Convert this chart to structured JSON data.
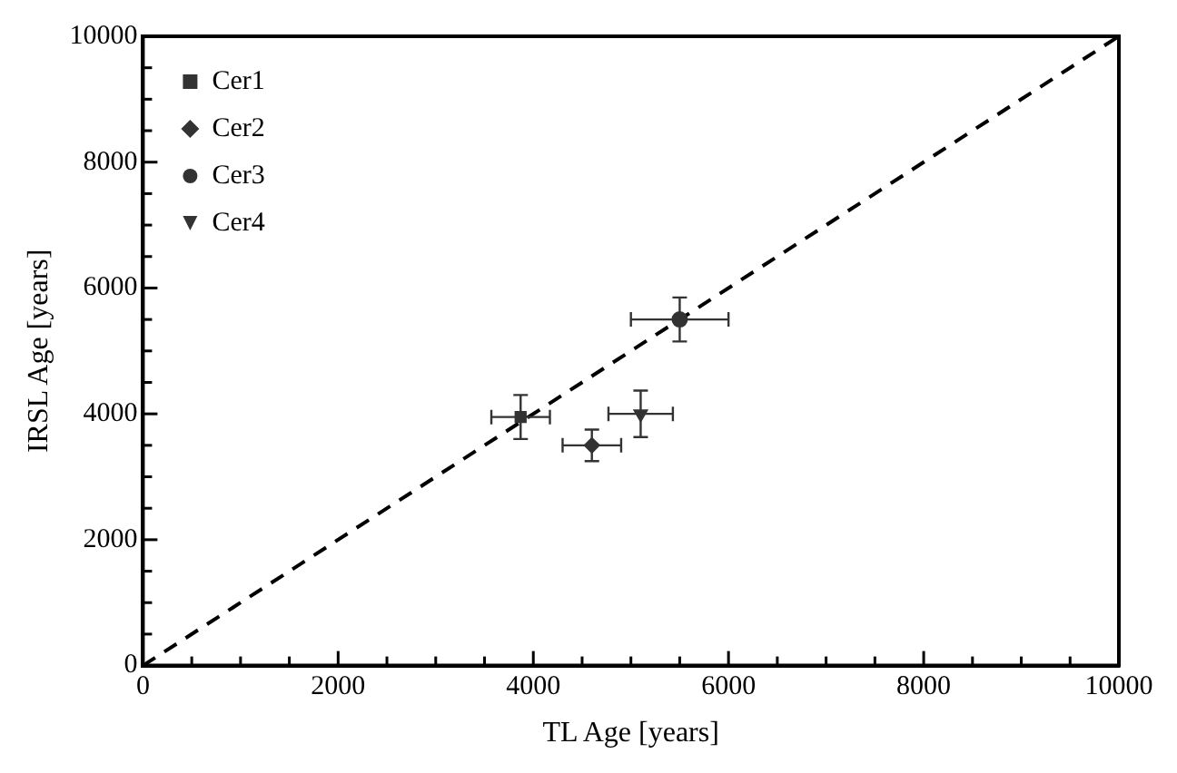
{
  "chart_data": {
    "type": "scatter",
    "xlabel": "TL Age [years]",
    "ylabel": "IRSL Age [years]",
    "xlim": [
      0,
      10000
    ],
    "ylim": [
      0,
      10000
    ],
    "xticks": [
      0,
      {
        "value": 500,
        "label": null
      },
      {
        "value": 1000,
        "label": null
      },
      {
        "value": 1500,
        "label": null
      },
      2000,
      {
        "value": 2500,
        "label": null
      },
      {
        "value": 3000,
        "label": null
      },
      {
        "value": 3500,
        "label": null
      },
      4000,
      {
        "value": 4500,
        "label": null
      },
      {
        "value": 5000,
        "label": null
      },
      {
        "value": 5500,
        "label": null
      },
      6000,
      {
        "value": 6500,
        "label": null
      },
      {
        "value": 7000,
        "label": null
      },
      {
        "value": 7500,
        "label": null
      },
      8000,
      {
        "value": 8500,
        "label": null
      },
      {
        "value": 9000,
        "label": null
      },
      {
        "value": 9500,
        "label": null
      },
      10000
    ],
    "yticks": [
      0,
      {
        "value": 500,
        "label": null
      },
      {
        "value": 1000,
        "label": null
      },
      {
        "value": 1500,
        "label": null
      },
      2000,
      {
        "value": 2500,
        "label": null
      },
      {
        "value": 3000,
        "label": null
      },
      {
        "value": 3500,
        "label": null
      },
      4000,
      {
        "value": 4500,
        "label": null
      },
      {
        "value": 5000,
        "label": null
      },
      {
        "value": 5500,
        "label": null
      },
      6000,
      {
        "value": 6500,
        "label": null
      },
      {
        "value": 7000,
        "label": null
      },
      {
        "value": 7500,
        "label": null
      },
      8000,
      {
        "value": 8500,
        "label": null
      },
      {
        "value": 9000,
        "label": null
      },
      {
        "value": 9500,
        "label": null
      },
      10000
    ],
    "grid": false,
    "legend": "top left",
    "series": [
      {
        "name": "Cer1",
        "color": "#333333",
        "marker": "square",
        "x": [
          3870
        ],
        "values": [
          3950
        ],
        "errors": [
          350
        ],
        "xerrors": [
          300
        ]
      },
      {
        "name": "Cer2",
        "color": "#333333",
        "marker": "diamond",
        "x": [
          4600
        ],
        "values": [
          3500
        ],
        "errors": [
          250
        ],
        "xerrors": [
          300
        ]
      },
      {
        "name": "Cer3",
        "color": "#333333",
        "marker": "circle",
        "x": [
          5500
        ],
        "values": [
          5500
        ],
        "errors": [
          350
        ],
        "xerrors": [
          500
        ]
      },
      {
        "name": "Cer4",
        "color": "#333333",
        "marker": "triangle",
        "x": [
          5100
        ],
        "values": [
          4000
        ],
        "errors": [
          370
        ],
        "xerrors": [
          330
        ]
      },
      {
        "type": "line",
        "color": "#000000",
        "marker": "none",
        "line_style": "dashed",
        "x": [
          0,
          10000
        ],
        "values": [
          0,
          10000
        ]
      }
    ]
  }
}
